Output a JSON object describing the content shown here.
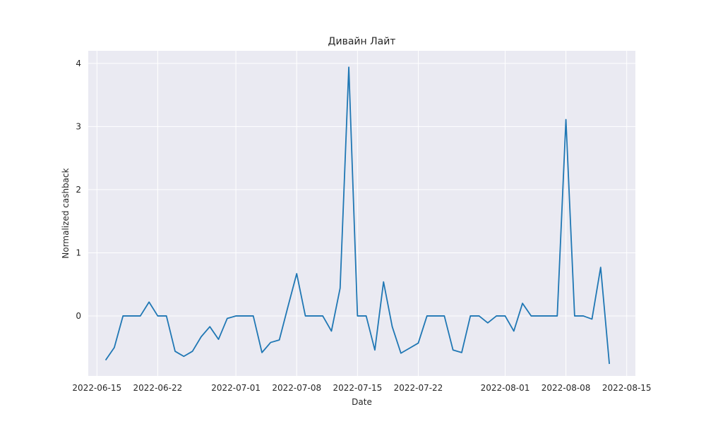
{
  "chart_data": {
    "type": "line",
    "title": "Дивайн Лайт",
    "xlabel": "Date",
    "ylabel": "Normalized cashback",
    "xlim": [
      "2022-06-14",
      "2022-08-16"
    ],
    "ylim": [
      -0.95,
      4.2
    ],
    "grid": true,
    "style": {
      "background": "#eaeaf2",
      "grid_color": "#ffffff",
      "line_color": "#1f77b4"
    },
    "x_ticks": [
      {
        "date": "2022-06-15",
        "label": "2022-06-15"
      },
      {
        "date": "2022-06-22",
        "label": "2022-06-22"
      },
      {
        "date": "2022-07-01",
        "label": "2022-07-01"
      },
      {
        "date": "2022-07-08",
        "label": "2022-07-08"
      },
      {
        "date": "2022-07-15",
        "label": "2022-07-15"
      },
      {
        "date": "2022-07-22",
        "label": "2022-07-22"
      },
      {
        "date": "2022-08-01",
        "label": "2022-08-01"
      },
      {
        "date": "2022-08-08",
        "label": "2022-08-08"
      },
      {
        "date": "2022-08-15",
        "label": "2022-08-15"
      }
    ],
    "y_ticks": [
      {
        "value": 0,
        "label": "0"
      },
      {
        "value": 1,
        "label": "1"
      },
      {
        "value": 2,
        "label": "2"
      },
      {
        "value": 3,
        "label": "3"
      },
      {
        "value": 4,
        "label": "4"
      }
    ],
    "series": [
      {
        "x": [
          "2022-06-16",
          "2022-06-17",
          "2022-06-18",
          "2022-06-19",
          "2022-06-20",
          "2022-06-21",
          "2022-06-22",
          "2022-06-23",
          "2022-06-24",
          "2022-06-25",
          "2022-06-26",
          "2022-06-27",
          "2022-06-28",
          "2022-06-29",
          "2022-06-30",
          "2022-07-01",
          "2022-07-02",
          "2022-07-03",
          "2022-07-04",
          "2022-07-05",
          "2022-07-06",
          "2022-07-07",
          "2022-07-08",
          "2022-07-09",
          "2022-07-10",
          "2022-07-11",
          "2022-07-12",
          "2022-07-13",
          "2022-07-14",
          "2022-07-15",
          "2022-07-16",
          "2022-07-17",
          "2022-07-18",
          "2022-07-19",
          "2022-07-20",
          "2022-07-21",
          "2022-07-22",
          "2022-07-23",
          "2022-07-24",
          "2022-07-25",
          "2022-07-26",
          "2022-07-27",
          "2022-07-28",
          "2022-07-29",
          "2022-07-30",
          "2022-07-31",
          "2022-08-01",
          "2022-08-02",
          "2022-08-03",
          "2022-08-04",
          "2022-08-05",
          "2022-08-06",
          "2022-08-07",
          "2022-08-08",
          "2022-08-09",
          "2022-08-10",
          "2022-08-11",
          "2022-08-12",
          "2022-08-13"
        ],
        "y": [
          -0.7,
          -0.5,
          0,
          0,
          0,
          0.22,
          0,
          0,
          -0.56,
          -0.64,
          -0.56,
          -0.33,
          -0.17,
          -0.37,
          -0.04,
          0,
          0,
          0,
          -0.58,
          -0.42,
          -0.38,
          0.15,
          0.67,
          0,
          0,
          0,
          -0.24,
          0.44,
          3.94,
          0,
          0,
          -0.54,
          0.54,
          -0.17,
          -0.59,
          -0.51,
          -0.43,
          0,
          0,
          0,
          -0.54,
          -0.58,
          0,
          0,
          -0.11,
          0,
          0,
          -0.24,
          0.2,
          0,
          0,
          0,
          0,
          3.11,
          0,
          0,
          -0.05,
          0.77,
          -0.76
        ]
      }
    ]
  }
}
